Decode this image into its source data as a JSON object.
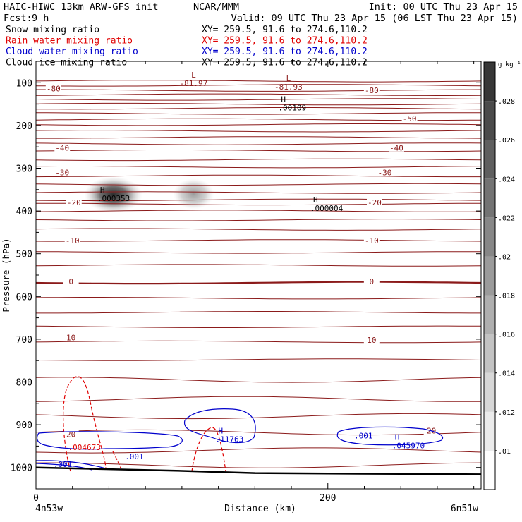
{
  "header": {
    "title_left": "HAIC-HIWC 13km ARW-GFS init",
    "org": "NCAR/MMM",
    "init": "Init: 00 UTC Thu 23 Apr 15",
    "fcst_label": "Fcst:",
    "fcst_value": "9 h",
    "valid": "Valid: 09 UTC Thu 23 Apr 15 (06 LST Thu 23 Apr 15)"
  },
  "fields": [
    {
      "name": "Snow mixing ratio",
      "xy": "XY= 259.5, 91.6 to 274.6,110.2",
      "color": "#000000"
    },
    {
      "name": "Rain water mixing ratio",
      "xy": "XY= 259.5, 91.6 to 274.6,110.2",
      "color": "#e00000"
    },
    {
      "name": "Cloud water mixing ratio",
      "xy": "XY= 259.5, 91.6 to 274.6,110.2",
      "color": "#0000cc"
    },
    {
      "name": "Cloud ice mixing ratio",
      "xy": "XY= 259.5, 91.6 to 274.6,110.2",
      "color": "#000000"
    }
  ],
  "chart_data": {
    "type": "cross-section",
    "xlabel": "Distance (km)",
    "ylabel": "Pressure (hPa)",
    "x_range": [
      0,
      305
    ],
    "x_ticks": [
      0,
      200
    ],
    "x_ends": [
      "4n53w",
      "6n51w"
    ],
    "y_range": [
      50,
      1050
    ],
    "y_scale": "linear",
    "y_ticks": [
      100,
      200,
      300,
      400,
      500,
      600,
      700,
      800,
      900,
      1000
    ],
    "colorbar": {
      "unit": "g kg⁻¹",
      "ticks": [
        ".01",
        ".012",
        ".014",
        ".016",
        ".018",
        ".02",
        ".022",
        ".024",
        ".026",
        ".028"
      ],
      "min": 0.009,
      "max": 0.03
    },
    "temperature_isotherms": {
      "color": "#8b1a1a",
      "interval_degC": 5,
      "labels": [
        {
          "text": "-80",
          "x": 12,
          "p": 118
        },
        {
          "text": "-80",
          "x": 230,
          "p": 122
        },
        {
          "text": "-50",
          "x": 256,
          "p": 188
        },
        {
          "text": "-40",
          "x": 18,
          "p": 256
        },
        {
          "text": "-40",
          "x": 247,
          "p": 256
        },
        {
          "text": "-30",
          "x": 18,
          "p": 314
        },
        {
          "text": "-30",
          "x": 239,
          "p": 314
        },
        {
          "text": "-20",
          "x": 26,
          "p": 384
        },
        {
          "text": "-20",
          "x": 232,
          "p": 384
        },
        {
          "text": "-10",
          "x": 25,
          "p": 473
        },
        {
          "text": "-10",
          "x": 230,
          "p": 473
        },
        {
          "text": "0",
          "x": 24,
          "p": 569
        },
        {
          "text": "0",
          "x": 230,
          "p": 569
        },
        {
          "text": "10",
          "x": 24,
          "p": 700
        },
        {
          "text": "10",
          "x": 230,
          "p": 706
        },
        {
          "text": "20",
          "x": 24,
          "p": 926
        },
        {
          "text": "20",
          "x": 271,
          "p": 918
        }
      ],
      "extrema": [
        {
          "kind": "L",
          "value": "-81.97",
          "x": 108,
          "p": 88
        },
        {
          "kind": "L",
          "value": "-81.93",
          "x": 173,
          "p": 96
        }
      ]
    },
    "cloud_ice_blobs": [
      {
        "x": 53,
        "p": 362,
        "rx": 20,
        "rp": 42,
        "peak": 0.028
      },
      {
        "x": 108,
        "p": 360,
        "rx": 14,
        "rp": 36,
        "peak": 0.015
      }
    ],
    "annotations": [
      {
        "kind": "H",
        "value": ".000353",
        "x": 42,
        "p": 362,
        "field": "cloud_ice",
        "color": "#000000"
      },
      {
        "kind": "H",
        "value": ".000004",
        "x": 188,
        "p": 385,
        "field": "snow",
        "color": "#000000"
      },
      {
        "kind": "H",
        "value": ".00109",
        "x": 166,
        "p": 150,
        "field": "cloud_ice",
        "color": "#000000"
      },
      {
        "kind": "H",
        "value": ".11763",
        "x": 123,
        "p": 925,
        "field": "cloud_water",
        "color": "#0000cc"
      },
      {
        "kind": "H",
        "value": ".045970",
        "x": 244,
        "p": 940,
        "field": "cloud_water",
        "color": "#0000cc"
      },
      {
        "kind": "",
        "value": ".004673",
        "x": 22,
        "p": 944,
        "field": "rain",
        "color": "#e00000"
      },
      {
        "kind": "",
        "value": ".001",
        "x": 61,
        "p": 966,
        "field": "cloud_water",
        "color": "#0000cc"
      },
      {
        "kind": "",
        "value": ".001",
        "x": 218,
        "p": 917,
        "field": "cloud_water",
        "color": "#0000cc"
      },
      {
        "kind": "",
        "value": ".001",
        "x": 12,
        "p": 984,
        "field": "cloud_water",
        "color": "#0000cc"
      }
    ],
    "terrain_p": [
      [
        0,
        1000
      ],
      [
        50,
        1004
      ],
      [
        100,
        1008
      ],
      [
        150,
        1013
      ],
      [
        200,
        1014
      ],
      [
        250,
        1015
      ],
      [
        305,
        1016
      ]
    ]
  }
}
